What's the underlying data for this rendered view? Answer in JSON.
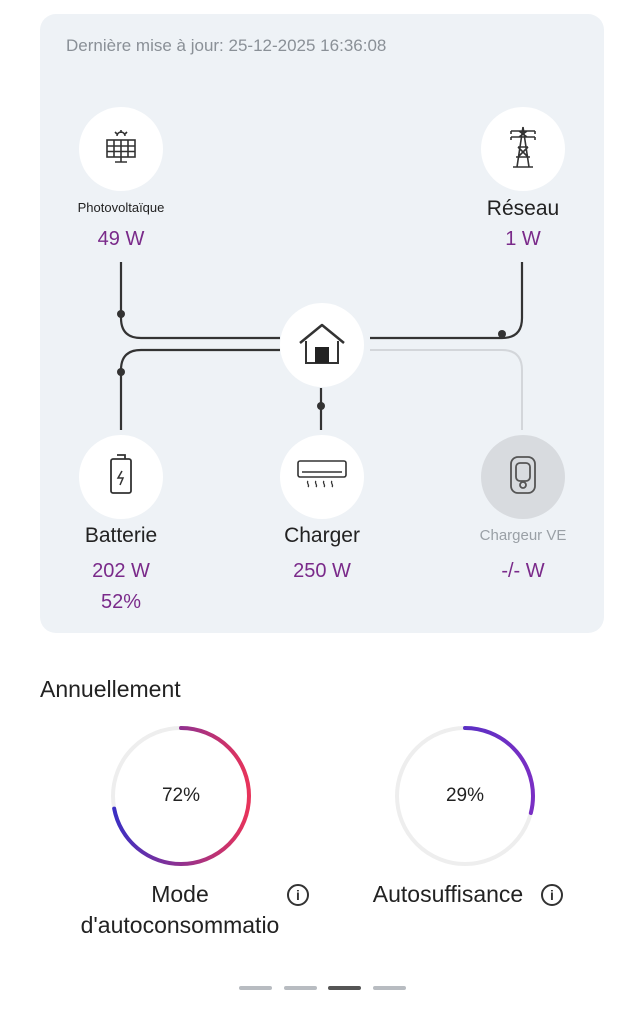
{
  "status": {
    "last_update": "Dernière mise à jour: 25-12-2025 16:36:08"
  },
  "nodes": {
    "pv": {
      "label": "Photovoltaïque",
      "value": "49 W",
      "icon": "solar-panel-icon"
    },
    "grid": {
      "label": "Réseau",
      "value": "1 W",
      "icon": "power-tower-icon"
    },
    "home": {
      "icon": "house-icon"
    },
    "battery": {
      "label": "Batterie",
      "value": "202 W",
      "soc": "52%",
      "icon": "battery-icon"
    },
    "charger": {
      "label": "Charger",
      "value": "250 W",
      "icon": "heater-icon"
    },
    "ev": {
      "label": "Chargeur VE",
      "value": "-/- W",
      "icon": "ev-charger-icon"
    }
  },
  "yearly": {
    "title": "Annuellement",
    "self_consumption": {
      "label_line1": "Mode",
      "label_line2": "d'autoconsommatio",
      "value_text": "72%",
      "value": 0.72
    },
    "self_sufficiency": {
      "label": "Autosuffisance",
      "value_text": "29%",
      "value": 0.29
    }
  },
  "pager": {
    "pages": 4,
    "active": 2
  },
  "colors": {
    "accent_start": "#3a2fc4",
    "accent_end": "#e8335a",
    "value_purple": "#7a2a8a"
  }
}
